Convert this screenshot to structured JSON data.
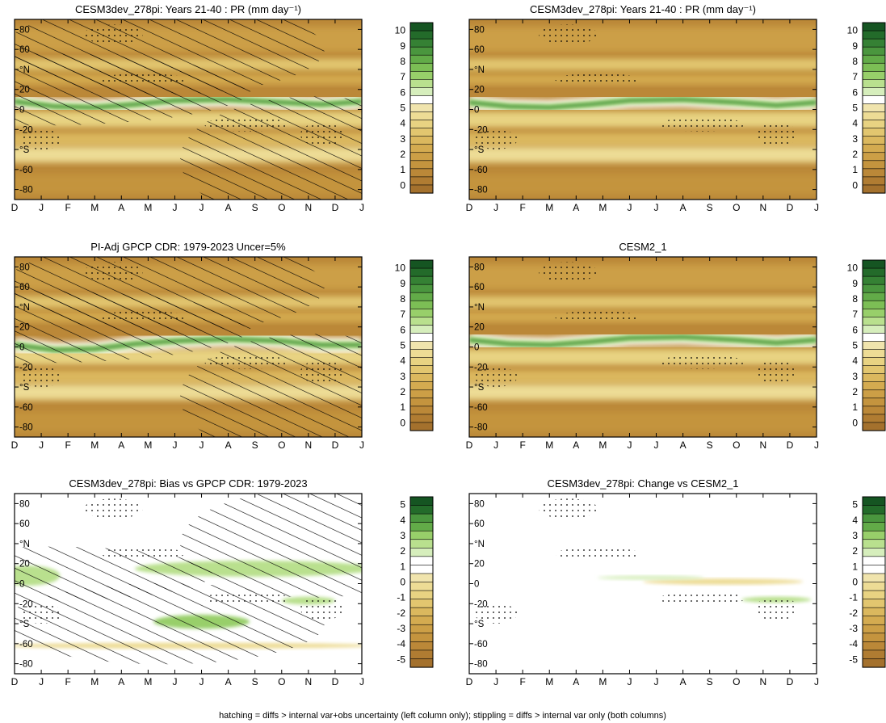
{
  "chart_data": [
    {
      "type": "heatmap",
      "title": "CESM3dev_278pi: Years 21-40 : PR (mm day⁻¹)",
      "months": [
        "D",
        "J",
        "F",
        "M",
        "A",
        "M",
        "J",
        "J",
        "A",
        "S",
        "O",
        "N",
        "D",
        "J"
      ],
      "lat_ticks": [
        "80",
        "60",
        "°N",
        "20",
        "0",
        "-20",
        "°S",
        "-60",
        "-80"
      ],
      "lat_range": [
        -90,
        90
      ],
      "colorbar_ticks": [
        "10",
        "9",
        "8",
        "7",
        "6",
        "5",
        "4",
        "3",
        "2",
        "1",
        "0"
      ],
      "colorbar_range": [
        0,
        10
      ],
      "kind": "absolute",
      "itcz_path": [
        [
          0,
          8
        ],
        [
          1.5,
          3
        ],
        [
          3,
          2
        ],
        [
          4.5,
          5
        ],
        [
          6,
          9
        ],
        [
          8,
          10
        ],
        [
          10,
          7
        ],
        [
          11.5,
          5
        ],
        [
          13,
          8
        ]
      ],
      "hatching": true,
      "stippling": true
    },
    {
      "type": "heatmap",
      "title": "CESM3dev_278pi: Years 21-40 : PR (mm day⁻¹)",
      "months": [
        "D",
        "J",
        "F",
        "M",
        "A",
        "M",
        "J",
        "J",
        "A",
        "S",
        "O",
        "N",
        "D",
        "J"
      ],
      "lat_ticks": [
        "80",
        "60",
        "°N",
        "20",
        "0",
        "-20",
        "°S",
        "-60",
        "-80"
      ],
      "lat_range": [
        -90,
        90
      ],
      "colorbar_ticks": [
        "10",
        "9",
        "8",
        "7",
        "6",
        "5",
        "4",
        "3",
        "2",
        "1",
        "0"
      ],
      "colorbar_range": [
        0,
        10
      ],
      "kind": "absolute",
      "itcz_path": [
        [
          0,
          7
        ],
        [
          1.5,
          3
        ],
        [
          3,
          2
        ],
        [
          4.5,
          5
        ],
        [
          6,
          9
        ],
        [
          8,
          10
        ],
        [
          10,
          7
        ],
        [
          11.5,
          4
        ],
        [
          13,
          7
        ]
      ],
      "hatching": false,
      "stippling": true
    },
    {
      "type": "heatmap",
      "title": "PI-Adj GPCP CDR: 1979-2023 Uncer=5%",
      "months": [
        "D",
        "J",
        "F",
        "M",
        "A",
        "M",
        "J",
        "J",
        "A",
        "S",
        "O",
        "N",
        "D",
        "J"
      ],
      "lat_ticks": [
        "80",
        "60",
        "°N",
        "20",
        "0",
        "-20",
        "°S",
        "-60",
        "-80"
      ],
      "lat_range": [
        -90,
        90
      ],
      "colorbar_ticks": [
        "10",
        "9",
        "8",
        "7",
        "6",
        "5",
        "4",
        "3",
        "2",
        "1",
        "0"
      ],
      "colorbar_range": [
        0,
        10
      ],
      "kind": "absolute",
      "itcz_path": [
        [
          0,
          2
        ],
        [
          1.5,
          -3
        ],
        [
          3,
          -2
        ],
        [
          4.5,
          3
        ],
        [
          6,
          6
        ],
        [
          8,
          8
        ],
        [
          10,
          6
        ],
        [
          11.5,
          2
        ],
        [
          13,
          2
        ]
      ],
      "hatching": true,
      "stippling": true
    },
    {
      "type": "heatmap",
      "title": "CESM2_1",
      "months": [
        "D",
        "J",
        "F",
        "M",
        "A",
        "M",
        "J",
        "J",
        "A",
        "S",
        "O",
        "N",
        "D",
        "J"
      ],
      "lat_ticks": [
        "80",
        "60",
        "°N",
        "20",
        "0",
        "-20",
        "°S",
        "-60",
        "-80"
      ],
      "lat_range": [
        -90,
        90
      ],
      "colorbar_ticks": [
        "10",
        "9",
        "8",
        "7",
        "6",
        "5",
        "4",
        "3",
        "2",
        "1",
        "0"
      ],
      "colorbar_range": [
        0,
        10
      ],
      "kind": "absolute",
      "itcz_path": [
        [
          0,
          7
        ],
        [
          1.5,
          3
        ],
        [
          3,
          2
        ],
        [
          4.5,
          5
        ],
        [
          6,
          9
        ],
        [
          8,
          10
        ],
        [
          10,
          7
        ],
        [
          11.5,
          4
        ],
        [
          13,
          7
        ]
      ],
      "hatching": false,
      "stippling": true
    },
    {
      "type": "heatmap",
      "title": "CESM3dev_278pi: Bias vs GPCP CDR: 1979-2023",
      "months": [
        "D",
        "J",
        "F",
        "M",
        "A",
        "M",
        "J",
        "J",
        "A",
        "S",
        "O",
        "N",
        "D",
        "J"
      ],
      "lat_ticks": [
        "80",
        "60",
        "°N",
        "20",
        "0",
        "-20",
        "°S",
        "-60",
        "-80"
      ],
      "lat_range": [
        -90,
        90
      ],
      "colorbar_ticks": [
        "5",
        "4",
        "3",
        "2",
        "1",
        "0",
        "-1",
        "-2",
        "-3",
        "-4",
        "-5"
      ],
      "colorbar_range": [
        -5,
        5
      ],
      "kind": "difference",
      "hatching": true,
      "stippling": true
    },
    {
      "type": "heatmap",
      "title": "CESM3dev_278pi: Change vs CESM2_1",
      "months": [
        "D",
        "J",
        "F",
        "M",
        "A",
        "M",
        "J",
        "J",
        "A",
        "S",
        "O",
        "N",
        "D",
        "J"
      ],
      "lat_ticks": [
        "80",
        "60",
        "°N",
        "20",
        "0",
        "-20",
        "°S",
        "-60",
        "-80"
      ],
      "lat_range": [
        -90,
        90
      ],
      "colorbar_ticks": [
        "5",
        "4",
        "3",
        "2",
        "1",
        "0",
        "-1",
        "-2",
        "-3",
        "-4",
        "-5"
      ],
      "colorbar_range": [
        -5,
        5
      ],
      "kind": "difference",
      "hatching": false,
      "stippling": true
    }
  ],
  "palette": {
    "dry": [
      "#a4712d",
      "#b07c32",
      "#bb8838",
      "#c4943e",
      "#cc9f46",
      "#d4ab50",
      "#dbb85e",
      "#e2c66f",
      "#e8d382",
      "#eddc95",
      "#f0e4ad"
    ],
    "wet": [
      "#ffffff",
      "#d6eebc",
      "#b9e08e",
      "#98cf6a",
      "#7cbe55",
      "#62ab48",
      "#4a963e",
      "#358134",
      "#236b2a",
      "#155522"
    ]
  },
  "footer": "hatching = diffs > internal var+obs uncertainty (left column only); stippling = diffs > internal var only (both columns)"
}
